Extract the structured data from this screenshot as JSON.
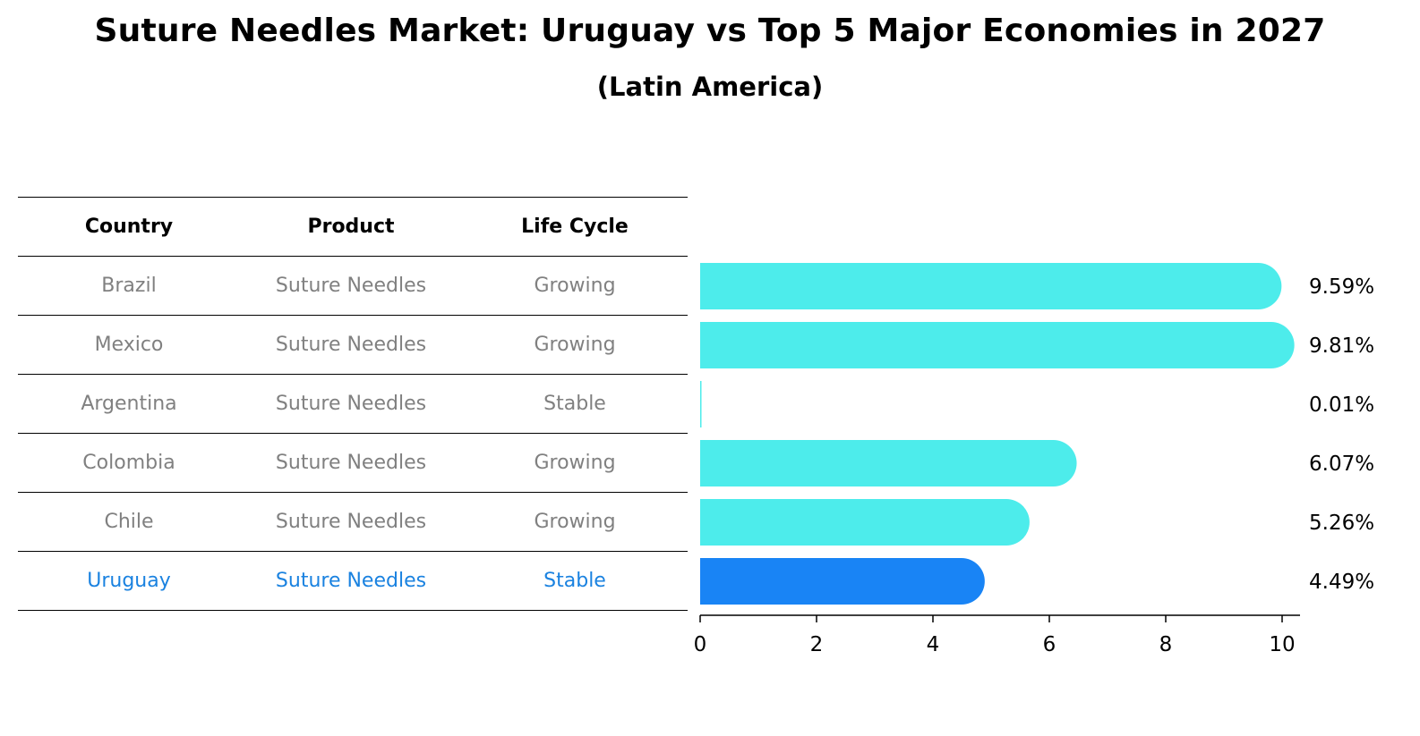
{
  "title": "Suture Needles Market: Uruguay vs Top 5 Major Economies in 2027",
  "subtitle": "(Latin America)",
  "table": {
    "headers": [
      "Country",
      "Product",
      "Life Cycle"
    ],
    "rows": [
      {
        "country": "Brazil",
        "product": "Suture Needles",
        "life_cycle": "Growing"
      },
      {
        "country": "Mexico",
        "product": "Suture Needles",
        "life_cycle": "Growing"
      },
      {
        "country": "Argentina",
        "product": "Suture Needles",
        "life_cycle": "Stable"
      },
      {
        "country": "Colombia",
        "product": "Suture Needles",
        "life_cycle": "Growing"
      },
      {
        "country": "Chile",
        "product": "Suture Needles",
        "life_cycle": "Growing"
      },
      {
        "country": "Uruguay",
        "product": "Suture Needles",
        "life_cycle": "Stable"
      }
    ],
    "highlight_row": 5
  },
  "colors": {
    "bar": "#4deceb",
    "highlight_bar": "#1984f5",
    "muted_text": "#808080",
    "highlight_text": "#1a82e0"
  },
  "chart_data": {
    "type": "bar",
    "orientation": "horizontal",
    "categories": [
      "Brazil",
      "Mexico",
      "Argentina",
      "Colombia",
      "Chile",
      "Uruguay"
    ],
    "values": [
      9.59,
      9.81,
      0.01,
      6.07,
      5.26,
      4.49
    ],
    "value_labels": [
      "9.59%",
      "9.81%",
      "0.01%",
      "6.07%",
      "5.26%",
      "4.49%"
    ],
    "highlight_index": 5,
    "xlim": [
      0,
      10.3
    ],
    "xticks": [
      0,
      2,
      4,
      6,
      8,
      10
    ],
    "xtick_labels": [
      "0",
      "2",
      "4",
      "6",
      "8",
      "10"
    ],
    "grid": false
  }
}
